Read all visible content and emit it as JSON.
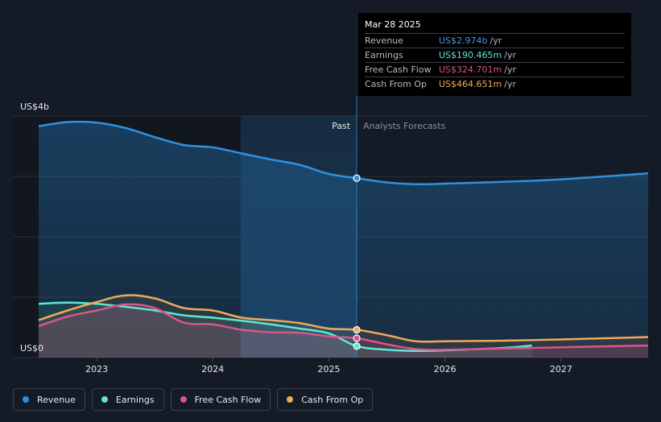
{
  "tooltip": {
    "date": "Mar 28 2025",
    "rows": [
      {
        "label": "Revenue",
        "value": "US$2.974b",
        "unit": "/yr",
        "color": "#3b9be8"
      },
      {
        "label": "Earnings",
        "value": "US$190.465m",
        "unit": "/yr",
        "color": "#5ee8cf"
      },
      {
        "label": "Free Cash Flow",
        "value": "US$324.701m",
        "unit": "/yr",
        "color": "#d9558a"
      },
      {
        "label": "Cash From Op",
        "value": "US$464.651m",
        "unit": "/yr",
        "color": "#eeaa58"
      }
    ]
  },
  "legend": [
    {
      "label": "Revenue",
      "color": "#2f91e0"
    },
    {
      "label": "Earnings",
      "color": "#5ee8cf"
    },
    {
      "label": "Free Cash Flow",
      "color": "#d9558a"
    },
    {
      "label": "Cash From Op",
      "color": "#eeaa58"
    }
  ],
  "chart_data": {
    "type": "line",
    "y_top_label": "US$4b",
    "y_bottom_label": "US$0",
    "ylim": [
      0,
      4
    ],
    "y_unit": "US$ billions",
    "xlim": [
      2022.5,
      2027.75
    ],
    "x_ticks": [
      {
        "value": 2023,
        "label": "2023"
      },
      {
        "value": 2024,
        "label": "2024"
      },
      {
        "value": 2025,
        "label": "2025"
      },
      {
        "value": 2026,
        "label": "2026"
      },
      {
        "value": 2027,
        "label": "2027"
      }
    ],
    "divider_x": 2025.24,
    "divider_past_label": "Past",
    "divider_forecast_label": "Analysts Forecasts",
    "highlight_start_x": 2024.24,
    "series": [
      {
        "name": "Revenue",
        "color": "#2f91e0",
        "fill": true,
        "points": [
          [
            2022.5,
            3.83
          ],
          [
            2022.75,
            3.9
          ],
          [
            2023.0,
            3.89
          ],
          [
            2023.25,
            3.8
          ],
          [
            2023.5,
            3.65
          ],
          [
            2023.75,
            3.52
          ],
          [
            2024.0,
            3.48
          ],
          [
            2024.25,
            3.38
          ],
          [
            2024.5,
            3.28
          ],
          [
            2024.75,
            3.19
          ],
          [
            2025.0,
            3.04
          ],
          [
            2025.24,
            2.97
          ],
          [
            2025.5,
            2.9
          ],
          [
            2025.75,
            2.87
          ],
          [
            2026.0,
            2.88
          ],
          [
            2026.5,
            2.91
          ],
          [
            2027.0,
            2.95
          ],
          [
            2027.75,
            3.05
          ]
        ]
      },
      {
        "name": "Earnings",
        "color": "#5ee8cf",
        "fill": true,
        "points": [
          [
            2022.5,
            0.89
          ],
          [
            2022.75,
            0.91
          ],
          [
            2023.0,
            0.89
          ],
          [
            2023.25,
            0.84
          ],
          [
            2023.5,
            0.78
          ],
          [
            2023.75,
            0.7
          ],
          [
            2024.0,
            0.66
          ],
          [
            2024.25,
            0.61
          ],
          [
            2024.5,
            0.55
          ],
          [
            2024.75,
            0.48
          ],
          [
            2025.0,
            0.4
          ],
          [
            2025.24,
            0.19
          ],
          [
            2025.5,
            0.13
          ],
          [
            2025.75,
            0.11
          ],
          [
            2026.0,
            0.12
          ],
          [
            2026.5,
            0.16
          ],
          [
            2026.75,
            0.2
          ]
        ]
      },
      {
        "name": "Free Cash Flow",
        "color": "#d9558a",
        "fill": true,
        "points": [
          [
            2022.5,
            0.52
          ],
          [
            2022.75,
            0.68
          ],
          [
            2023.0,
            0.78
          ],
          [
            2023.25,
            0.88
          ],
          [
            2023.5,
            0.82
          ],
          [
            2023.75,
            0.58
          ],
          [
            2024.0,
            0.55
          ],
          [
            2024.25,
            0.46
          ],
          [
            2024.5,
            0.42
          ],
          [
            2024.75,
            0.41
          ],
          [
            2025.0,
            0.35
          ],
          [
            2025.24,
            0.32
          ],
          [
            2025.5,
            0.22
          ],
          [
            2025.75,
            0.14
          ],
          [
            2026.0,
            0.13
          ],
          [
            2026.5,
            0.15
          ],
          [
            2027.0,
            0.17
          ],
          [
            2027.75,
            0.2
          ]
        ]
      },
      {
        "name": "Cash From Op",
        "color": "#eeaa58",
        "fill": true,
        "points": [
          [
            2022.5,
            0.62
          ],
          [
            2022.75,
            0.78
          ],
          [
            2023.0,
            0.92
          ],
          [
            2023.25,
            1.03
          ],
          [
            2023.5,
            0.98
          ],
          [
            2023.75,
            0.82
          ],
          [
            2024.0,
            0.78
          ],
          [
            2024.25,
            0.66
          ],
          [
            2024.5,
            0.62
          ],
          [
            2024.75,
            0.57
          ],
          [
            2025.0,
            0.48
          ],
          [
            2025.24,
            0.46
          ],
          [
            2025.5,
            0.37
          ],
          [
            2025.75,
            0.27
          ],
          [
            2026.0,
            0.27
          ],
          [
            2026.5,
            0.28
          ],
          [
            2027.0,
            0.3
          ],
          [
            2027.75,
            0.34
          ]
        ]
      }
    ],
    "markers": [
      {
        "series": "Revenue",
        "x": 2025.24,
        "y": 2.97
      },
      {
        "series": "Cash From Op",
        "x": 2025.24,
        "y": 0.46
      },
      {
        "series": "Free Cash Flow",
        "x": 2025.24,
        "y": 0.32
      },
      {
        "series": "Earnings",
        "x": 2025.24,
        "y": 0.19
      }
    ]
  }
}
